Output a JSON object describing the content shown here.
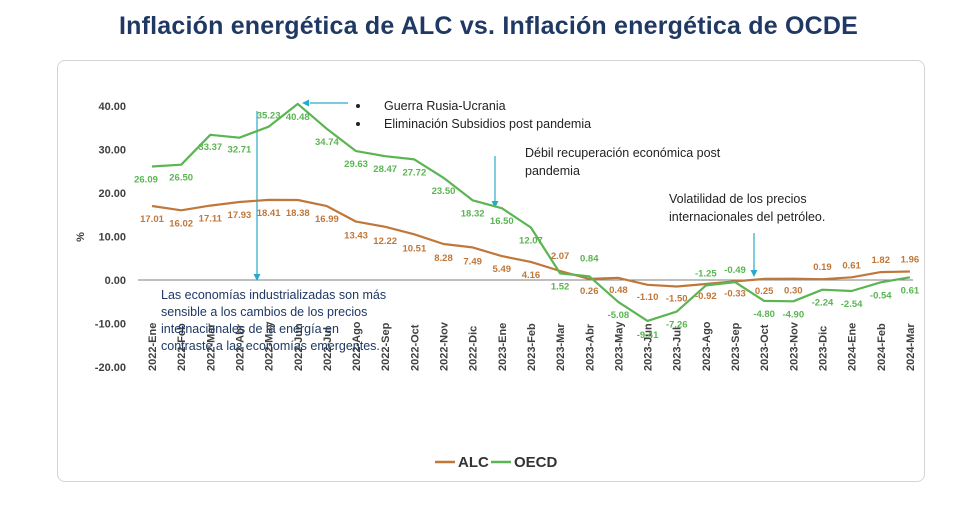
{
  "title": "Inflación energética de ALC vs. Inflación energética de OCDE",
  "colors": {
    "alc": "#c0773a",
    "oecd": "#5ab552",
    "annotation": "#29a9cc",
    "title": "#1f3864"
  },
  "chart_data": {
    "type": "line",
    "ylabel": "%",
    "xlabel": "",
    "ylim": [
      -20,
      40
    ],
    "yticks": [
      "40.00",
      "30.00",
      "20.00",
      "10.00",
      "0.00",
      "-10.00",
      "-20.00"
    ],
    "ytick_values": [
      40,
      30,
      20,
      10,
      0,
      -10,
      -20
    ],
    "grid": false,
    "legend_position": "bottom-center",
    "categories": [
      "2022-Ene",
      "2022-Feb",
      "2022-Mar",
      "2022-Abr",
      "2022-May",
      "2022-Jun",
      "2022-Jul",
      "2022-Ago",
      "2022-Sep",
      "2022-Oct",
      "2022-Nov",
      "2022-Dic",
      "2023-Ene",
      "2023-Feb",
      "2023-Mar",
      "2023-Abr",
      "2023-May",
      "2023-Jun",
      "2023-Jul",
      "2023-Ago",
      "2023-Sep",
      "2023-Oct",
      "2023-Nov",
      "2023-Dic",
      "2024-Ene",
      "2024-Feb",
      "2024-Mar"
    ],
    "series": [
      {
        "name": "ALC",
        "values": [
          17.01,
          16.02,
          17.11,
          17.93,
          18.41,
          18.38,
          16.99,
          13.43,
          12.22,
          10.51,
          8.28,
          7.49,
          5.49,
          4.16,
          2.07,
          0.26,
          0.48,
          -1.1,
          -1.5,
          -0.92,
          -0.33,
          0.25,
          0.3,
          0.19,
          0.61,
          1.82,
          1.96
        ],
        "labels": [
          "17.01",
          "16.02",
          "17.11",
          "17.93",
          "18.41",
          "18.38",
          "16.99",
          "13.43",
          "12.22",
          "10.51",
          "8.28",
          "7.49",
          "5.49",
          "4.16",
          "2.07",
          "0.26",
          "0.48",
          "-1.10",
          "-1.50",
          "-0.92",
          "-0.33",
          "0.25",
          "0.30",
          "0.19",
          "0.61",
          "1.82",
          "1.96"
        ]
      },
      {
        "name": "OECD",
        "values": [
          26.09,
          26.5,
          33.37,
          32.71,
          35.23,
          40.48,
          34.74,
          29.63,
          28.47,
          27.72,
          23.5,
          18.32,
          16.5,
          12.07,
          1.52,
          0.84,
          -5.08,
          -9.41,
          -7.26,
          -1.25,
          -0.49,
          -4.8,
          -4.9,
          -2.24,
          -2.54,
          -0.54,
          0.61
        ],
        "labels": [
          "26.09",
          "26.50",
          "33.37",
          "32.71",
          "35.23",
          "40.48",
          "34.74",
          "29.63",
          "28.47",
          "27.72",
          "23.50",
          "18.32",
          "16.50",
          "12.07",
          "1.52",
          "0.84",
          "-5.08",
          "-9.41",
          "-7.26",
          "-1.25",
          "-0.49",
          "-4.80",
          "-4.90",
          "-2.24",
          "-2.54",
          "-0.54",
          "0.61"
        ]
      }
    ],
    "annotations": {
      "war_bullets": [
        "Guerra Rusia-Ucrania",
        "Eliminación Subsidios post pandemia"
      ],
      "weak_recovery": [
        "Débil recuperación económica post",
        "pandemia"
      ],
      "volatility": [
        "Volatilidad  de los precios",
        "internacionales del petróleo."
      ],
      "industrialized": [
        "Las economías industrializadas son más",
        "sensible a los cambios de los precios",
        "internacionales de la energía en",
        "contraste a las economías emergentes."
      ]
    }
  }
}
